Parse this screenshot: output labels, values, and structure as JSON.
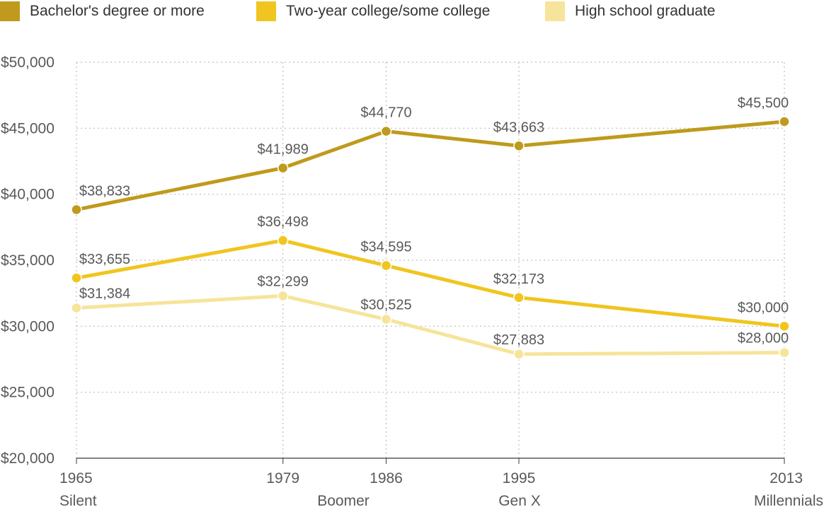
{
  "legend": [
    {
      "label": "Bachelor's degree or more",
      "color": "#bf9a1c"
    },
    {
      "label": "Two-year college/some college",
      "color": "#f0c51f"
    },
    {
      "label": "High school graduate",
      "color": "#f6e49a"
    }
  ],
  "chart_data": {
    "type": "line",
    "title": "",
    "xlabel": "",
    "ylabel": "",
    "x": [
      1965,
      1979,
      1986,
      1995,
      2013
    ],
    "x_tick_labels": [
      "1965",
      "1979",
      "1986",
      "1995",
      "2013"
    ],
    "generation_labels": [
      "Silent",
      "Boomer",
      "Gen X",
      "Millennials"
    ],
    "ylim": [
      20000,
      50000
    ],
    "y_ticks": [
      20000,
      25000,
      30000,
      35000,
      40000,
      45000,
      50000
    ],
    "y_tick_labels": [
      "$20,000",
      "$25,000",
      "$30,000",
      "$35,000",
      "$40,000",
      "$45,000",
      "$50,000"
    ],
    "grid": true,
    "legend_position": "top-left",
    "series": [
      {
        "name": "Bachelor's degree or more",
        "color": "#bf9a1c",
        "values": [
          38833,
          41989,
          44770,
          43663,
          45500
        ],
        "labels": [
          "$38,833",
          "$41,989",
          "$44,770",
          "$43,663",
          "$45,500"
        ]
      },
      {
        "name": "Two-year college/some college",
        "color": "#f0c51f",
        "values": [
          33655,
          36498,
          34595,
          32173,
          30000
        ],
        "labels": [
          "$33,655",
          "$36,498",
          "$34,595",
          "$32,173",
          "$30,000"
        ]
      },
      {
        "name": "High school graduate",
        "color": "#f6e49a",
        "values": [
          31384,
          32299,
          30525,
          27883,
          28000
        ],
        "labels": [
          "$31,384",
          "$32,299",
          "$30,525",
          "$27,883",
          "$28,000"
        ]
      }
    ]
  }
}
